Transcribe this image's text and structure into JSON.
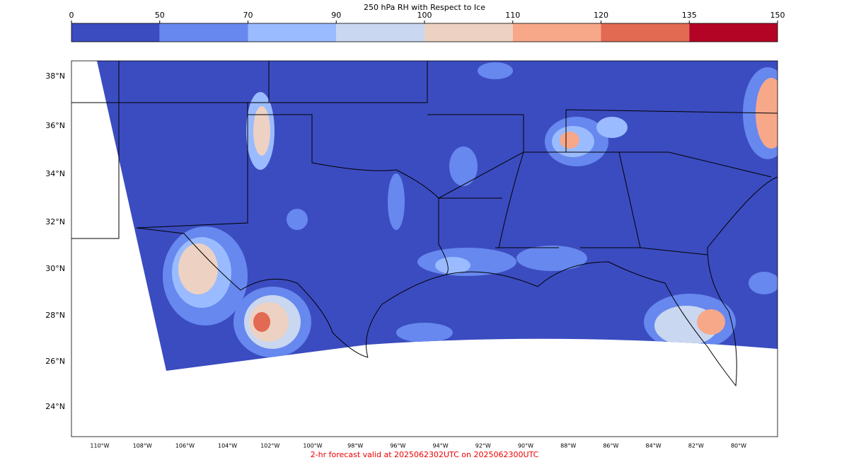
{
  "colorbar": {
    "title": "250 hPa RH with Respect to Ice",
    "bounds": [
      0,
      50,
      70,
      90,
      100,
      110,
      120,
      135,
      150
    ],
    "colors": [
      "#3b4cc0",
      "#6788ee",
      "#9abbff",
      "#c9d7f0",
      "#edd1c2",
      "#f7a889",
      "#e26952",
      "#b40426"
    ]
  },
  "map": {
    "lat_labels": [
      "38°N",
      "36°N",
      "34°N",
      "32°N",
      "30°N",
      "28°N",
      "26°N",
      "24°N"
    ],
    "lon_labels": [
      "110°W",
      "108°W",
      "106°W",
      "104°W",
      "102°W",
      "100°W",
      "98°W",
      "96°W",
      "94°W",
      "92°W",
      "90°W",
      "88°W",
      "86°W",
      "84°W",
      "82°W",
      "80°W"
    ]
  },
  "footer": "2-hr forecast valid at 2025062302UTC on 2025062300UTC"
}
